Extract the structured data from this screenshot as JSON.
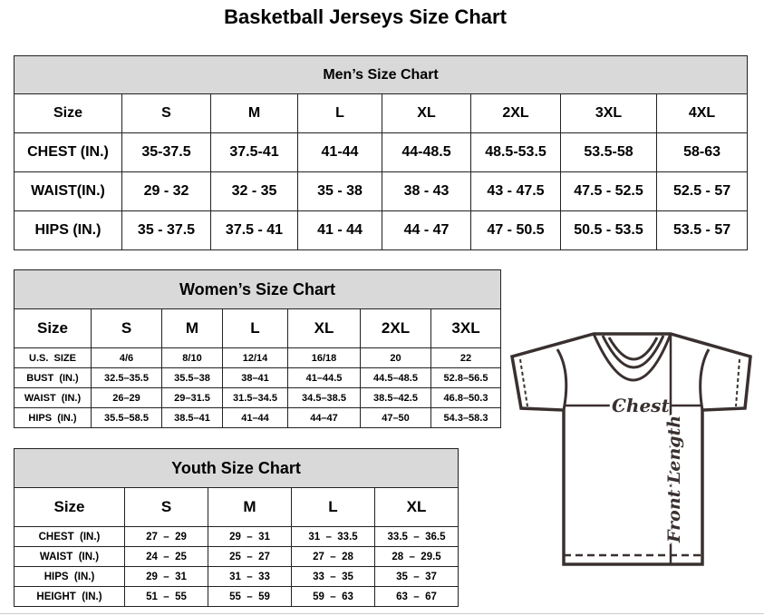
{
  "title": "Basketball Jerseys Size Chart",
  "men": {
    "caption": "Men’s Size Chart",
    "rows": [
      [
        "Size",
        "S",
        "M",
        "L",
        "XL",
        "2XL",
        "3XL",
        "4XL"
      ],
      [
        "CHEST (IN.)",
        "35-37.5",
        "37.5-41",
        "41-44",
        "44-48.5",
        "48.5-53.5",
        "53.5-58",
        "58-63"
      ],
      [
        "WAIST(IN.)",
        "29 - 32",
        "32 - 35",
        "35 - 38",
        "38 - 43",
        "43 - 47.5",
        "47.5 - 52.5",
        "52.5 - 57"
      ],
      [
        "HIPS (IN.)",
        "35 - 37.5",
        "37.5 - 41",
        "41 - 44",
        "44 - 47",
        "47 - 50.5",
        "50.5 - 53.5",
        "53.5 - 57"
      ]
    ]
  },
  "women": {
    "caption": "Women’s Size Chart",
    "rows": [
      [
        "Size",
        "S",
        "M",
        "L",
        "XL",
        "2XL",
        "3XL"
      ],
      [
        "U.S.  SIZE",
        "4/6",
        "8/10",
        "12/14",
        "16/18",
        "20",
        "22"
      ],
      [
        "BUST  (IN.)",
        "32.5–35.5",
        "35.5–38",
        "38–41",
        "41–44.5",
        "44.5–48.5",
        "52.8–56.5"
      ],
      [
        "WAIST  (IN.)",
        "26–29",
        "29–31.5",
        "31.5–34.5",
        "34.5–38.5",
        "38.5–42.5",
        "46.8–50.3"
      ],
      [
        "HIPS  (IN.)",
        "35.5–58.5",
        "38.5–41",
        "41–44",
        "44–47",
        "47–50",
        "54.3–58.3"
      ]
    ]
  },
  "youth": {
    "caption": "Youth Size Chart",
    "rows": [
      [
        "Size",
        "S",
        "M",
        "L",
        "XL"
      ],
      [
        "CHEST  (IN.)",
        "27  –  29",
        "29  –  31",
        "31  –  33.5",
        "33.5  –  36.5"
      ],
      [
        "WAIST  (IN.)",
        "24  –  25",
        "25  –  27",
        "27  –  28",
        "28  –  29.5"
      ],
      [
        "HIPS  (IN.)",
        "29  –  31",
        "31  –  33",
        "33  –  35",
        "35  –  37"
      ],
      [
        "HEIGHT  (IN.)",
        "51  –  55",
        "55  –  59",
        "59  –  63",
        "63  –  67"
      ]
    ]
  },
  "diagram": {
    "chest_label": "Chest",
    "length_label": "Front Length"
  }
}
